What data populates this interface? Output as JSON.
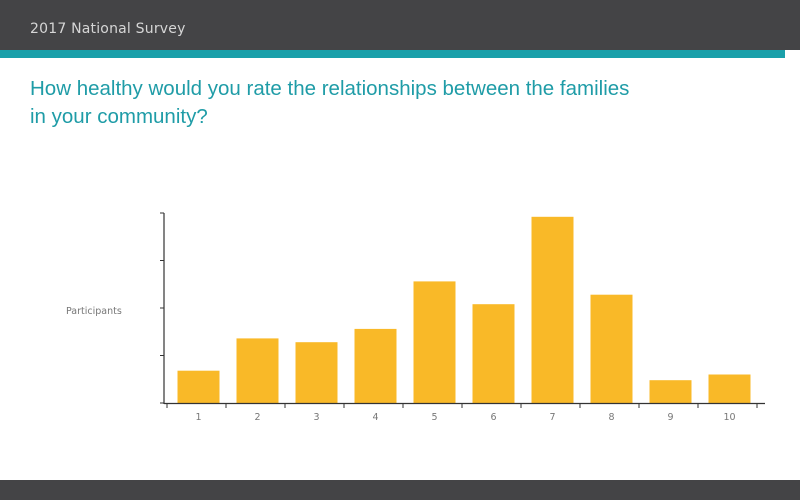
{
  "header": {
    "title": "2017 National Survey"
  },
  "question": "How healthy would you rate the relationships between the families in your community?",
  "colors": {
    "header_bg": "#444446",
    "accent": "#1aa0aa",
    "bar": "#f9b928",
    "axis": "#333333"
  },
  "chart_data": {
    "type": "bar",
    "title": "How healthy would you rate the relationships between the families in your community?",
    "xlabel": "",
    "ylabel": "Participants",
    "categories": [
      "1",
      "2",
      "3",
      "4",
      "5",
      "6",
      "7",
      "8",
      "9",
      "10"
    ],
    "values": [
      17,
      34,
      32,
      39,
      64,
      52,
      98,
      57,
      12,
      15
    ],
    "ylim": [
      0,
      100
    ],
    "grid": false,
    "legend": "none"
  }
}
